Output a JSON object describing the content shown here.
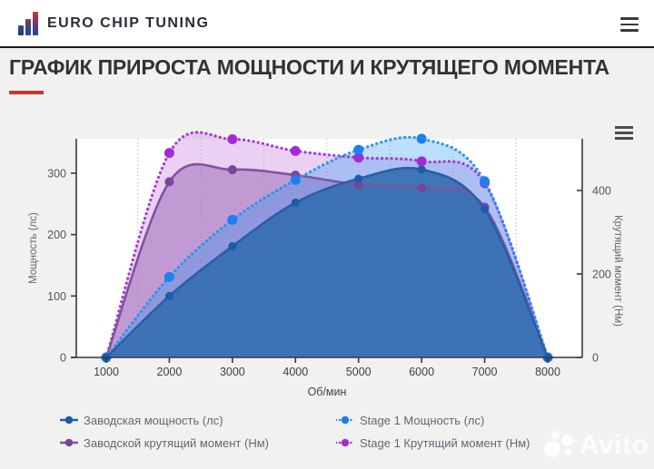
{
  "header": {
    "brand": "EURO CHIP TUNING"
  },
  "page": {
    "title": "ГРАФИК ПРИРОСТА МОЩНОСТИ И КРУТЯЩЕГО МОМЕНТА",
    "accent_color": "#c23b30"
  },
  "watermark": {
    "text": "Avito"
  },
  "chart_data": {
    "type": "area",
    "x": [
      1000,
      2000,
      3000,
      4000,
      5000,
      6000,
      7000,
      8000
    ],
    "x_tick_labels": [
      "1000",
      "2000",
      "3000",
      "4000",
      "5000",
      "6000",
      "7000",
      "8000"
    ],
    "xlabel": "Об/мин",
    "left_axis": {
      "label": "Мощность (лс)",
      "ticks": [
        0,
        100,
        200,
        300
      ],
      "max": 356
    },
    "right_axis": {
      "label": "Крутящий момент (Нм)",
      "ticks": [
        0,
        200,
        400
      ],
      "max": 524
    },
    "grid": {
      "vertical_minor_dotted": true,
      "horizontal": false
    },
    "legend_position": "bottom",
    "series": [
      {
        "name": "Заводская мощность (лс)",
        "axis": "left",
        "line": "solid",
        "color": "#2a5fa7",
        "marker_color": "#1b5cab",
        "fill": "rgba(54,111,178,0.92)",
        "marker_radius": 4.5,
        "values": [
          0,
          100,
          181,
          252,
          291,
          306,
          241,
          0
        ]
      },
      {
        "name": "Stage 1 Мощность (лс)",
        "axis": "left",
        "line": "dotted",
        "color": "#2196f3",
        "marker_color": "#1d7ff0",
        "fill": "rgba(33,150,243,0.30)",
        "marker_radius": 5.5,
        "values": [
          0,
          131,
          224,
          289,
          338,
          356,
          287,
          0
        ]
      },
      {
        "name": "Заводской крутящий момент (Нм)",
        "axis": "right",
        "line": "solid",
        "color": "#7e549f",
        "marker_color": "#73489a",
        "fill": "rgba(151,99,181,0.50)",
        "marker_radius": 5,
        "values": [
          0,
          421,
          450,
          437,
          414,
          406,
          360,
          0
        ]
      },
      {
        "name": "Stage 1 Крутящий момент (Нм)",
        "axis": "right",
        "line": "dotted",
        "color": "#a736d9",
        "marker_color": "#a42ad8",
        "fill": "rgba(196,120,222,0.35)",
        "marker_radius": 5.5,
        "values": [
          0,
          490,
          523,
          495,
          479,
          470,
          418,
          0
        ]
      }
    ]
  }
}
